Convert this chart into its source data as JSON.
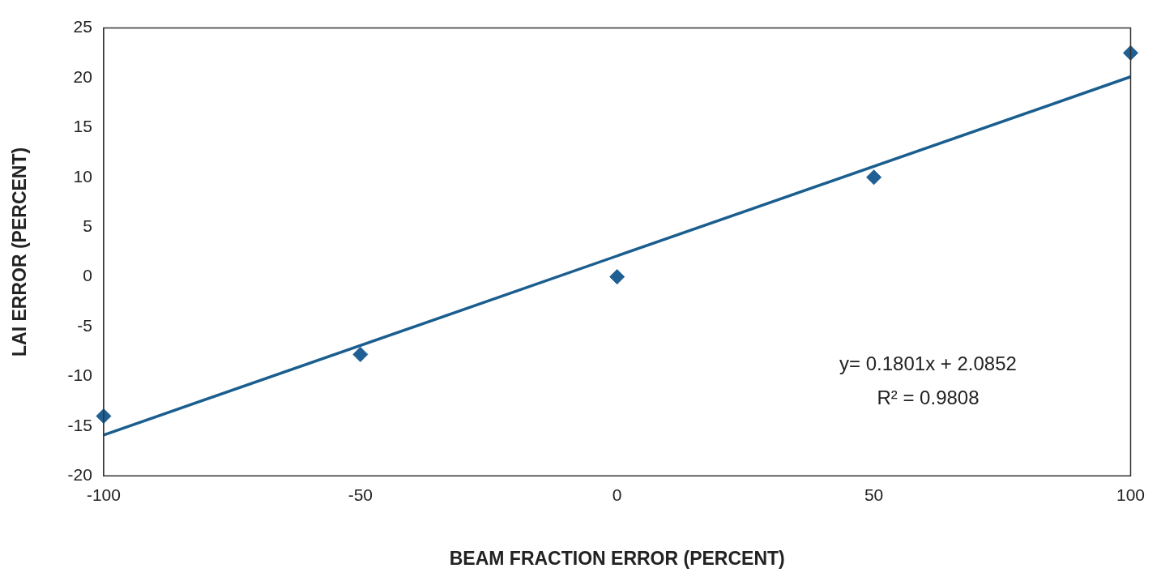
{
  "chart_data": {
    "type": "scatter",
    "xlabel": "BEAM FRACTION ERROR (PERCENT)",
    "ylabel": "LAI ERROR (PERCENT)",
    "xlim": [
      -100,
      100
    ],
    "xticks": [
      -100,
      -50,
      0,
      50,
      100
    ],
    "ylim": [
      -20,
      25
    ],
    "yticks": [
      -20,
      -15,
      -10,
      -5,
      0,
      5,
      10,
      15,
      20,
      25
    ],
    "grid": false,
    "series": [
      {
        "type": "scatter",
        "color": "#1f5f94",
        "marker": "diamond",
        "x": [
          -100,
          -50,
          0,
          50,
          100
        ],
        "values": [
          -14,
          -7.8,
          0,
          10,
          22.5
        ]
      },
      {
        "type": "line",
        "color": "#1a5e8f",
        "marker": "none",
        "line_style": "solid",
        "x": [
          -100,
          100
        ],
        "values": [
          -15.9,
          20.1
        ]
      }
    ],
    "annotations": [
      "y= 0.1801x + 2.0852",
      "R² = 0.9808"
    ]
  }
}
